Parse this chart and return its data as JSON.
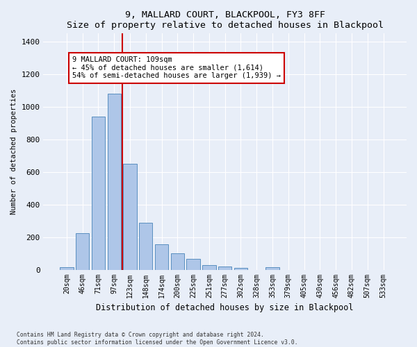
{
  "title": "9, MALLARD COURT, BLACKPOOL, FY3 8FF",
  "subtitle": "Size of property relative to detached houses in Blackpool",
  "xlabel": "Distribution of detached houses by size in Blackpool",
  "ylabel": "Number of detached properties",
  "bar_values": [
    15,
    225,
    940,
    1080,
    650,
    290,
    155,
    100,
    65,
    30,
    20,
    10,
    0,
    15,
    0,
    0,
    0,
    0,
    0,
    0,
    0
  ],
  "categories": [
    "20sqm",
    "46sqm",
    "71sqm",
    "97sqm",
    "123sqm",
    "148sqm",
    "174sqm",
    "200sqm",
    "225sqm",
    "251sqm",
    "277sqm",
    "302sqm",
    "328sqm",
    "353sqm",
    "379sqm",
    "405sqm",
    "430sqm",
    "456sqm",
    "482sqm",
    "507sqm",
    "533sqm"
  ],
  "bar_color": "#aec6e8",
  "bar_edge_color": "#5a8fc0",
  "redline_x": 3.5,
  "annotation_text": "9 MALLARD COURT: 109sqm\n← 45% of detached houses are smaller (1,614)\n54% of semi-detached houses are larger (1,939) →",
  "annotation_box_color": "#ffffff",
  "annotation_box_edge_color": "#cc0000",
  "redline_color": "#cc0000",
  "ylim": [
    0,
    1450
  ],
  "yticks": [
    0,
    200,
    400,
    600,
    800,
    1000,
    1200,
    1400
  ],
  "footer_line1": "Contains HM Land Registry data © Crown copyright and database right 2024.",
  "footer_line2": "Contains public sector information licensed under the Open Government Licence v3.0.",
  "bg_color": "#e8eef8",
  "plot_bg_color": "#e8eef8"
}
